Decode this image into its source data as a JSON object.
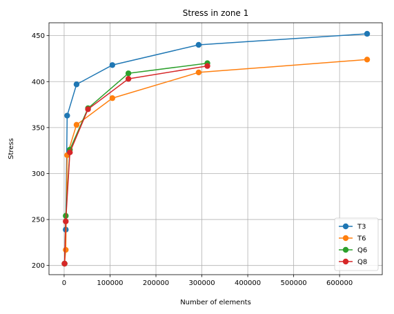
{
  "chart_data": {
    "type": "line",
    "title": "Stress in zone 1",
    "xlabel": "Number of elements",
    "ylabel": "Stress",
    "xlim": [
      -33000,
      693000
    ],
    "ylim": [
      190,
      464
    ],
    "xticks": [
      0,
      100000,
      200000,
      300000,
      400000,
      500000,
      600000
    ],
    "xtick_labels": [
      "0",
      "100000",
      "200000",
      "300000",
      "400000",
      "500000",
      "600000"
    ],
    "yticks": [
      200,
      250,
      300,
      350,
      400,
      450
    ],
    "ytick_labels": [
      "200",
      "250",
      "300",
      "350",
      "400",
      "450"
    ],
    "grid": true,
    "legend_position": "lower-right",
    "series": [
      {
        "name": "T3",
        "color": "#1f77b4",
        "x": [
          900,
          3500,
          6600,
          27000,
          105000,
          293000,
          660000
        ],
        "y": [
          202,
          239,
          363,
          397,
          418,
          440,
          452
        ]
      },
      {
        "name": "T6",
        "color": "#ff7f0e",
        "x": [
          900,
          3500,
          6600,
          27000,
          105000,
          293000,
          660000
        ],
        "y": [
          202,
          217,
          320,
          353,
          382,
          410,
          424
        ]
      },
      {
        "name": "Q6",
        "color": "#2ca02c",
        "x": [
          900,
          3500,
          12500,
          52000,
          140000,
          312000
        ],
        "y": [
          202,
          254,
          326,
          371,
          409,
          420
        ]
      },
      {
        "name": "Q8",
        "color": "#d62728",
        "x": [
          900,
          3500,
          12500,
          52000,
          140000,
          312000
        ],
        "y": [
          202,
          248,
          323,
          370,
          403,
          417
        ]
      }
    ]
  }
}
